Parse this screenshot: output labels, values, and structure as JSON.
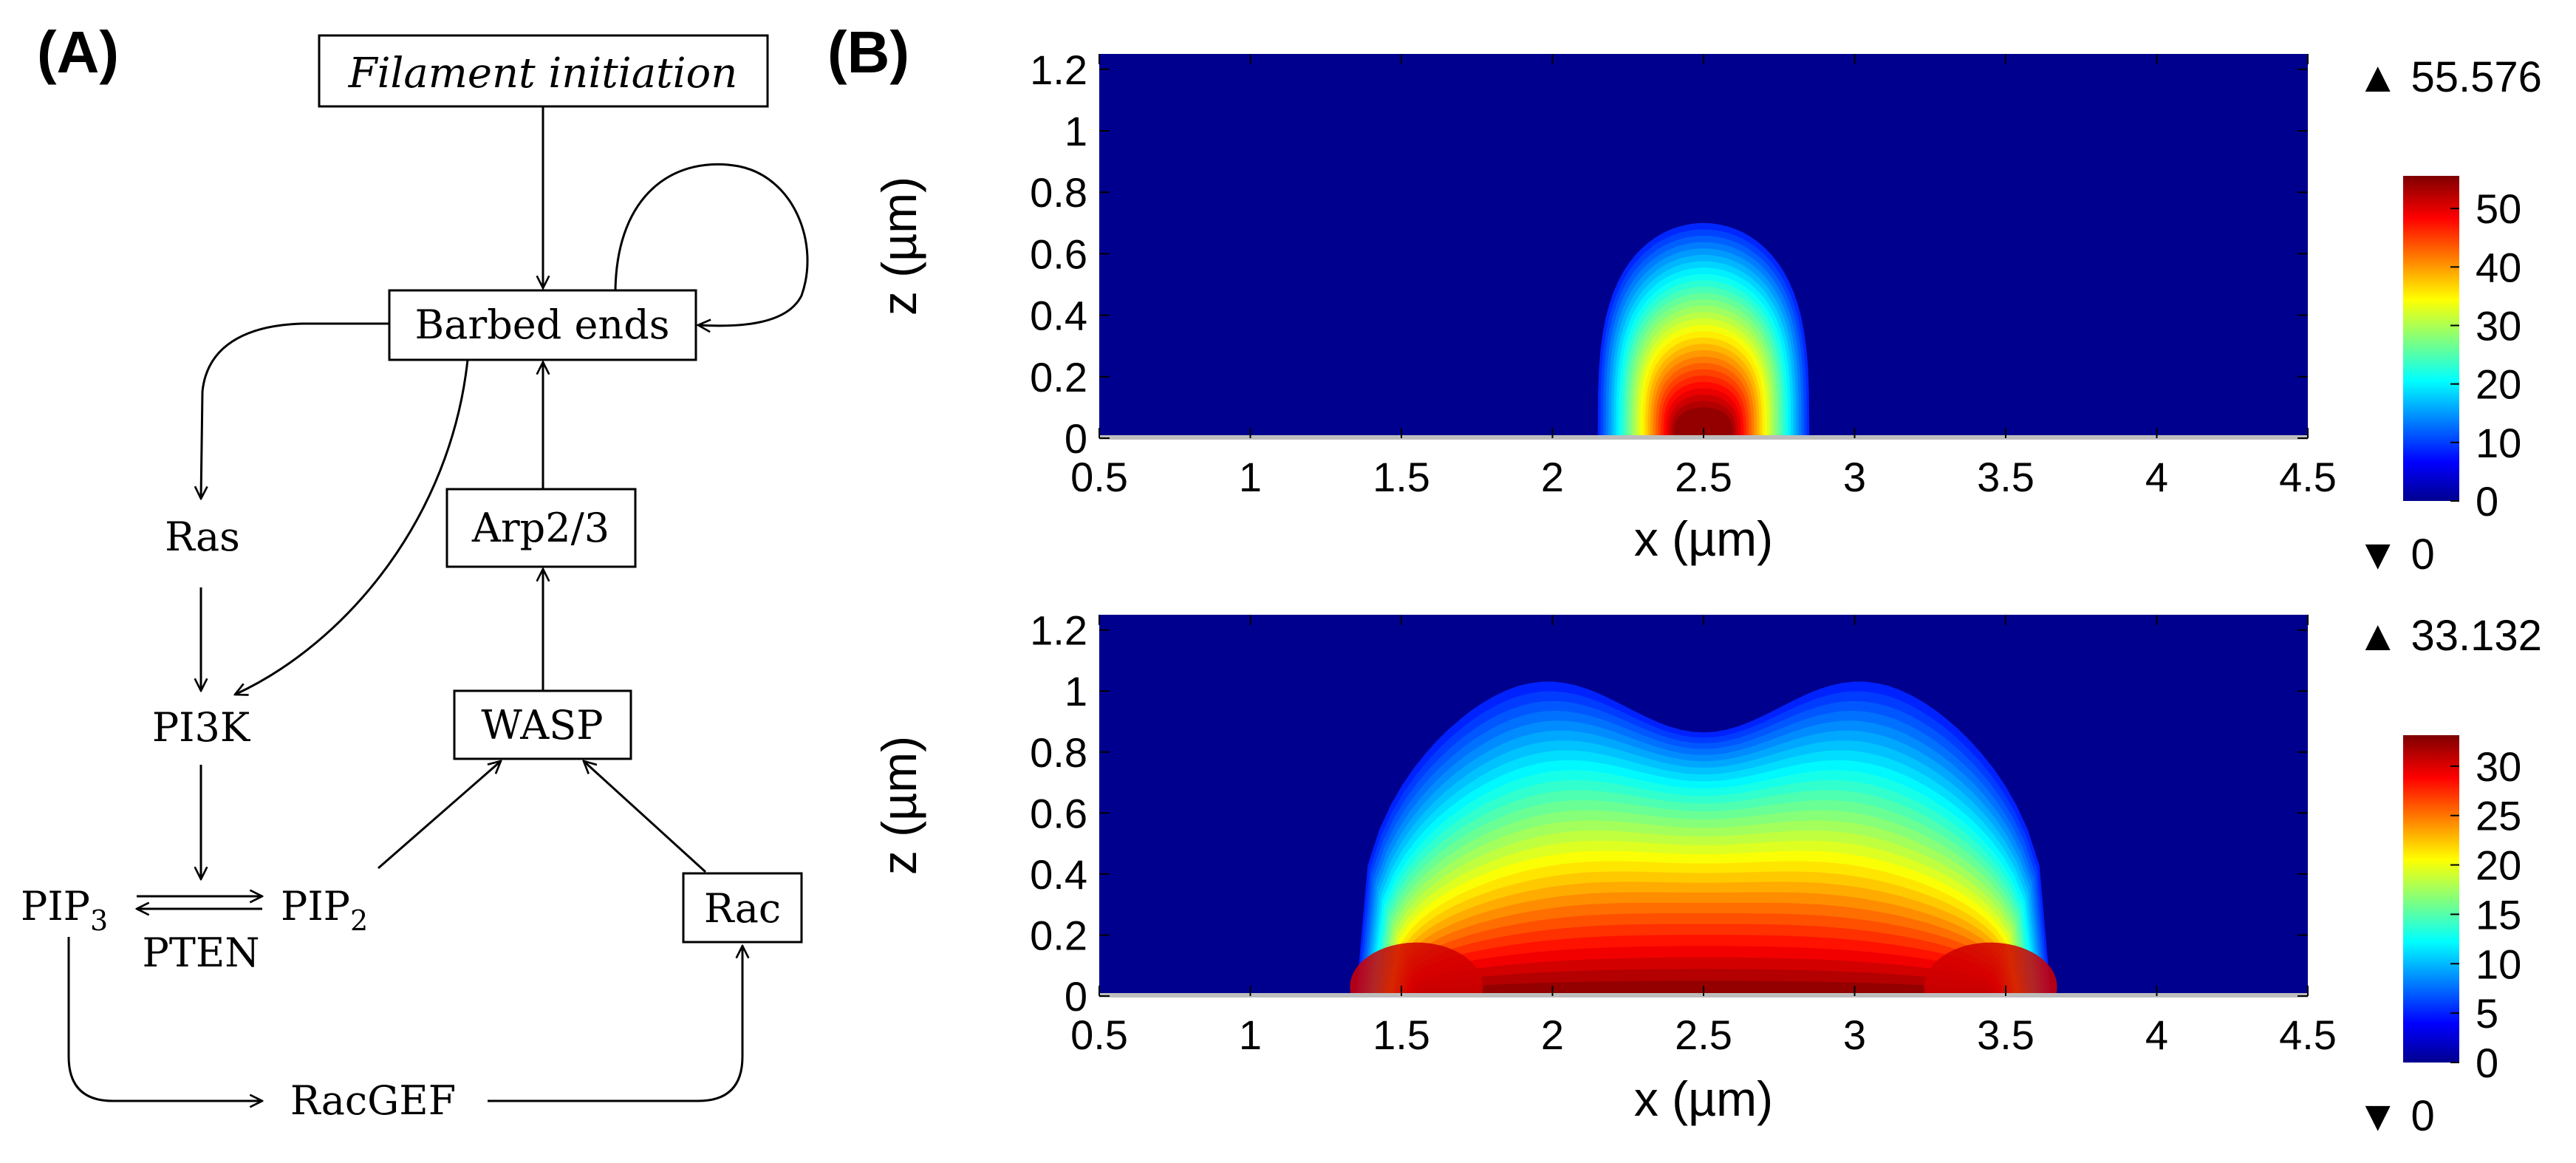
{
  "panel_a": {
    "label": "(A)",
    "nodes": {
      "filament_initiation": "Filament initiation",
      "barbed_ends": "Barbed ends",
      "arp23": "Arp2/3",
      "ras": "Ras",
      "pi3k": "PI3K",
      "wasp": "WASP",
      "pip3_base": "PIP",
      "pip3_sub": "3",
      "pip2_base": "PIP",
      "pip2_sub": "2",
      "pten": "PTEN",
      "rac": "Rac",
      "racgef": "RacGEF"
    }
  },
  "panel_b": {
    "label": "(B)"
  },
  "chart_data": [
    {
      "type": "heatmap",
      "name": "top",
      "xlabel": "x (µm)",
      "ylabel": "z (µm)",
      "xlim": [
        0.5,
        4.5
      ],
      "ylim": [
        0,
        1.25
      ],
      "xticks": [
        0.5,
        1,
        1.5,
        2,
        2.5,
        3,
        3.5,
        4,
        4.5
      ],
      "xtick_labels": [
        "0.5",
        "1",
        "1.5",
        "2",
        "2.5",
        "3",
        "3.5",
        "4",
        "4.5"
      ],
      "yticks": [
        0,
        0.2,
        0.4,
        0.6,
        0.8,
        1,
        1.2
      ],
      "ytick_labels": [
        "0",
        "0.2",
        "0.4",
        "0.6",
        "0.8",
        "1",
        "1.2"
      ],
      "colorbar_ticks": [
        0,
        10,
        20,
        30,
        40,
        50
      ],
      "colorbar_tick_labels": [
        "0",
        "10",
        "20",
        "30",
        "40",
        "50"
      ],
      "max_label": "▲ 55.576",
      "min_label": "▼ 0",
      "max_value": 55.576,
      "min_value": 0,
      "source_center_x": 2.5,
      "source_half_width": 0.35
    },
    {
      "type": "heatmap",
      "name": "bottom",
      "xlabel": "x (µm)",
      "ylabel": "z (µm)",
      "xlim": [
        0.5,
        4.5
      ],
      "ylim": [
        0,
        1.25
      ],
      "xticks": [
        0.5,
        1,
        1.5,
        2,
        2.5,
        3,
        3.5,
        4,
        4.5
      ],
      "xtick_labels": [
        "0.5",
        "1",
        "1.5",
        "2",
        "2.5",
        "3",
        "3.5",
        "4",
        "4.5"
      ],
      "yticks": [
        0,
        0.2,
        0.4,
        0.6,
        0.8,
        1,
        1.2
      ],
      "ytick_labels": [
        "0",
        "0.2",
        "0.4",
        "0.6",
        "0.8",
        "1",
        "1.2"
      ],
      "colorbar_ticks": [
        0,
        5,
        10,
        15,
        20,
        25,
        30
      ],
      "colorbar_tick_labels": [
        "0",
        "5",
        "10",
        "15",
        "20",
        "25",
        "30"
      ],
      "max_label": "▲ 33.132",
      "min_label": "▼ 0",
      "max_value": 33.132,
      "min_value": 0,
      "source_center_x": 2.5,
      "source_half_width": 1.15
    }
  ]
}
